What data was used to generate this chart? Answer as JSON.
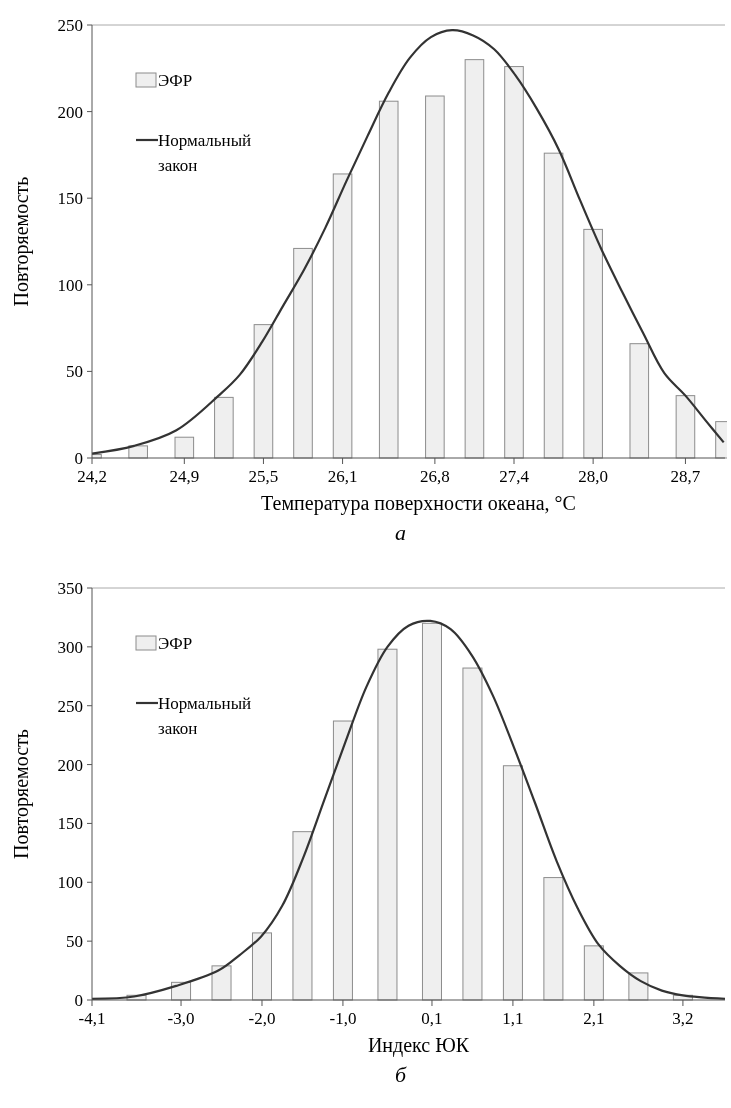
{
  "chart_data": [
    {
      "type": "bar",
      "ylabel": "Повторяемость",
      "xlabel": "Температура поверхности океана, °C",
      "legend": "top left",
      "grid": false,
      "xlim": [
        24.2,
        29.0
      ],
      "ylim": [
        0,
        250
      ],
      "yticks": [
        0,
        50,
        100,
        150,
        200,
        250
      ],
      "xticks": [
        {
          "value": 24.2,
          "label": "24,2"
        },
        {
          "value": 24.9,
          "label": "24,9"
        },
        {
          "value": 25.5,
          "label": "25,5"
        },
        {
          "value": 26.1,
          "label": "26,1"
        },
        {
          "value": 26.8,
          "label": "26,8"
        },
        {
          "value": 27.4,
          "label": "27,4"
        },
        {
          "value": 28.0,
          "label": "28,0"
        },
        {
          "value": 28.7,
          "label": "28,7"
        }
      ],
      "series": [
        {
          "name": "ЭФР",
          "color": "#efefef",
          "x": [
            24.2,
            24.55,
            24.9,
            25.2,
            25.5,
            25.8,
            26.1,
            26.45,
            26.8,
            27.1,
            27.4,
            27.7,
            28.0,
            28.35,
            28.7,
            29.0
          ],
          "values": [
            2,
            7,
            12,
            35,
            77,
            121,
            164,
            206,
            209,
            230,
            226,
            176,
            132,
            66,
            36,
            21
          ]
        },
        {
          "name": "Нормальный закон",
          "type": "line",
          "color": "#333333",
          "x": [
            24.2,
            24.52,
            24.84,
            25.16,
            25.32,
            25.49,
            25.65,
            25.81,
            25.97,
            26.13,
            26.29,
            26.45,
            26.61,
            26.77,
            26.93,
            27.09,
            27.25,
            27.41,
            27.57,
            27.74,
            27.9,
            28.06,
            28.22,
            28.38,
            28.54,
            28.7,
            28.86,
            28.99
          ],
          "values": [
            2.5,
            7,
            16,
            36,
            48,
            67,
            88,
            109,
            133,
            160,
            186,
            211,
            231,
            243,
            247,
            244,
            236,
            221,
            202,
            178,
            149,
            121,
            96,
            72,
            49,
            36,
            21,
            9
          ]
        }
      ],
      "annotations": [
        "а"
      ]
    },
    {
      "type": "bar",
      "ylabel": "Повторяемость",
      "xlabel": "Индекс ЮК",
      "legend": "top left",
      "grid": false,
      "xlim": [
        -4.1,
        3.72
      ],
      "ylim": [
        0,
        350
      ],
      "yticks": [
        0,
        50,
        100,
        150,
        200,
        250,
        300,
        350
      ],
      "xticks": [
        {
          "value": -4.1,
          "label": "-4,1"
        },
        {
          "value": -3.0,
          "label": "-3,0"
        },
        {
          "value": -2.0,
          "label": "-2,0"
        },
        {
          "value": -1.0,
          "label": "-1,0"
        },
        {
          "value": 0.1,
          "label": "0,1"
        },
        {
          "value": 1.1,
          "label": "1,1"
        },
        {
          "value": 2.1,
          "label": "2,1"
        },
        {
          "value": 3.2,
          "label": "3,2"
        }
      ],
      "series": [
        {
          "name": "ЭФР",
          "color": "#efefef",
          "x": [
            -3.55,
            -3.0,
            -2.5,
            -2.0,
            -1.5,
            -1.0,
            -0.45,
            0.1,
            0.6,
            1.1,
            1.6,
            2.1,
            2.65,
            3.2
          ],
          "values": [
            4,
            15,
            29,
            57,
            143,
            237,
            298,
            320,
            282,
            199,
            104,
            46,
            23,
            4
          ]
        },
        {
          "name": "Нормальный закон",
          "type": "line",
          "color": "#333333",
          "x": [
            -4.1,
            -3.58,
            -3.06,
            -2.54,
            -2.28,
            -2.01,
            -1.75,
            -1.49,
            -1.23,
            -0.97,
            -0.71,
            -0.45,
            -0.19,
            0.08,
            0.33,
            0.59,
            0.85,
            1.11,
            1.37,
            1.64,
            1.9,
            2.16,
            2.42,
            2.68,
            2.94,
            3.2,
            3.72
          ],
          "values": [
            1,
            3,
            12,
            25,
            38,
            54,
            80,
            121,
            170,
            219,
            266,
            300,
            318,
            322,
            315,
            293,
            259,
            215,
            168,
            118,
            78,
            47,
            29,
            16,
            8,
            4,
            1
          ]
        }
      ],
      "annotations": [
        "б"
      ]
    }
  ]
}
